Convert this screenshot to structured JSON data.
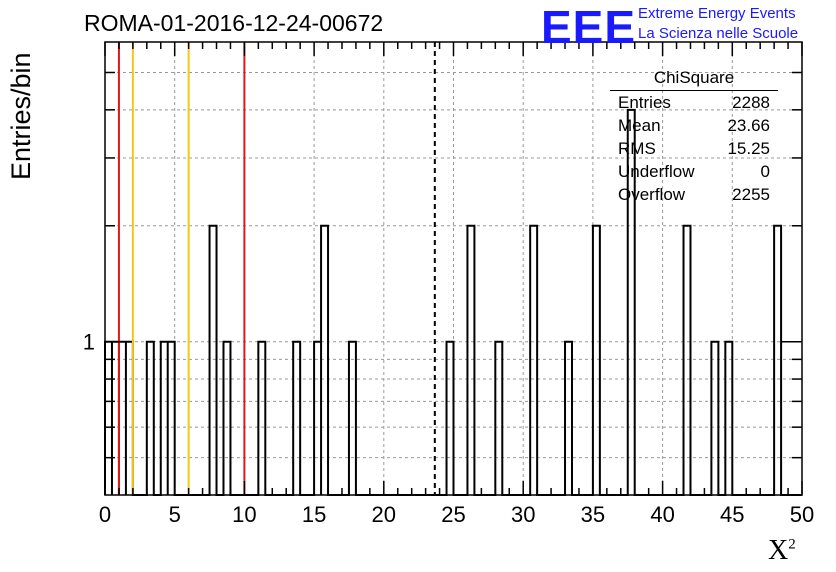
{
  "chart_data": {
    "type": "bar",
    "title": "ROMA-01-2016-12-24-00672",
    "xlabel": "X",
    "xlabel_sup": "2",
    "ylabel": "Entries/bin",
    "log_y": true,
    "grid": true,
    "xlim": [
      0,
      50
    ],
    "ylim": [
      0.4,
      6
    ],
    "xticks": [
      "0",
      "5",
      "10",
      "15",
      "20",
      "25",
      "30",
      "35",
      "40",
      "45",
      "50"
    ],
    "yticks": [
      "1"
    ],
    "bin_width": 0.5,
    "bins": [
      {
        "x": 0.0,
        "y": 1
      },
      {
        "x": 0.5,
        "y": 1
      },
      {
        "x": 1.0,
        "y": 1
      },
      {
        "x": 1.5,
        "y": 1
      },
      {
        "x": 3.0,
        "y": 1
      },
      {
        "x": 4.0,
        "y": 1
      },
      {
        "x": 4.5,
        "y": 1
      },
      {
        "x": 7.5,
        "y": 2
      },
      {
        "x": 8.5,
        "y": 1
      },
      {
        "x": 11.0,
        "y": 1
      },
      {
        "x": 13.5,
        "y": 1
      },
      {
        "x": 15.0,
        "y": 1
      },
      {
        "x": 15.5,
        "y": 2
      },
      {
        "x": 17.5,
        "y": 1
      },
      {
        "x": 24.5,
        "y": 1
      },
      {
        "x": 26.0,
        "y": 2
      },
      {
        "x": 28.0,
        "y": 1
      },
      {
        "x": 30.5,
        "y": 2
      },
      {
        "x": 33.0,
        "y": 1
      },
      {
        "x": 35.0,
        "y": 2
      },
      {
        "x": 37.5,
        "y": 4
      },
      {
        "x": 41.5,
        "y": 2
      },
      {
        "x": 43.5,
        "y": 1
      },
      {
        "x": 44.5,
        "y": 1
      },
      {
        "x": 48.0,
        "y": 2
      }
    ],
    "vertical_lines": [
      {
        "x": 1.0,
        "color": "#e01818",
        "style": "solid"
      },
      {
        "x": 2.0,
        "color": "#f5c518",
        "style": "solid"
      },
      {
        "x": 6.0,
        "color": "#f5c518",
        "style": "solid"
      },
      {
        "x": 10.0,
        "color": "#e01818",
        "style": "solid"
      },
      {
        "x": 23.66,
        "color": "#000000",
        "style": "dashed"
      }
    ],
    "stats": {
      "title": "ChiSquare",
      "rows": [
        {
          "label": "Entries",
          "value": "2288"
        },
        {
          "label": "Mean",
          "value": "23.66"
        },
        {
          "label": "RMS",
          "value": "15.25"
        },
        {
          "label": "Underflow",
          "value": "0"
        },
        {
          "label": "Overflow",
          "value": "2255"
        }
      ]
    }
  },
  "logo": {
    "mark": "EEE",
    "line1": "Extreme Energy Events",
    "line2": "La Scienza nelle Scuole",
    "color": "#1a1aff"
  }
}
